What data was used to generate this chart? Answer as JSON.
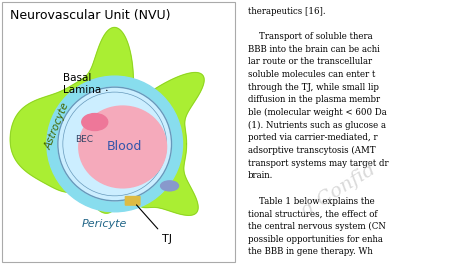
{
  "title": "Neurovascular Unit (NVU)",
  "title_fontsize": 9,
  "bg_color": "#ffffff",
  "border_color": "#aaaaaa",
  "astrocyte_color": "#aaee33",
  "astrocyte_edge_color": "#88cc22",
  "pericyte_color": "#88ddee",
  "vessel_wall_color": "#cceeff",
  "vessel_edge_color": "#6699bb",
  "blood_color": "#f5aabb",
  "nucleus_color": "#ee7799",
  "tj_rect_color": "#ddbb44",
  "tj_oval_color": "#8899cc",
  "label_basal": "Basal\nLamina",
  "label_astrocyte": "Astrocyte",
  "label_bec": "BEC",
  "label_blood": "Blood",
  "label_pericyte": "Pericyte",
  "label_tj": "TJ",
  "right_text_lines": [
    "therapeutics [16].",
    "",
    "    Transport of soluble thera",
    "BBB into the brain can be achi",
    "lar route or the transcellular",
    "soluble molecules can enter t",
    "through the TJ, while small lip",
    "diffusion in the plasma membr",
    "ble (molecular weight < 600 Da",
    "(1). Nutrients such as glucose a",
    "ported via carrier-mediated, r",
    "adsorptive transcytosis (AMT",
    "transport systems may target dr",
    "brain.",
    "",
    "    Table 1 below explains the",
    "tional structures, the effect of",
    "the central nervous system (CN",
    "possible opportunities for enha",
    "the BBB in gene therapy. Wh"
  ]
}
